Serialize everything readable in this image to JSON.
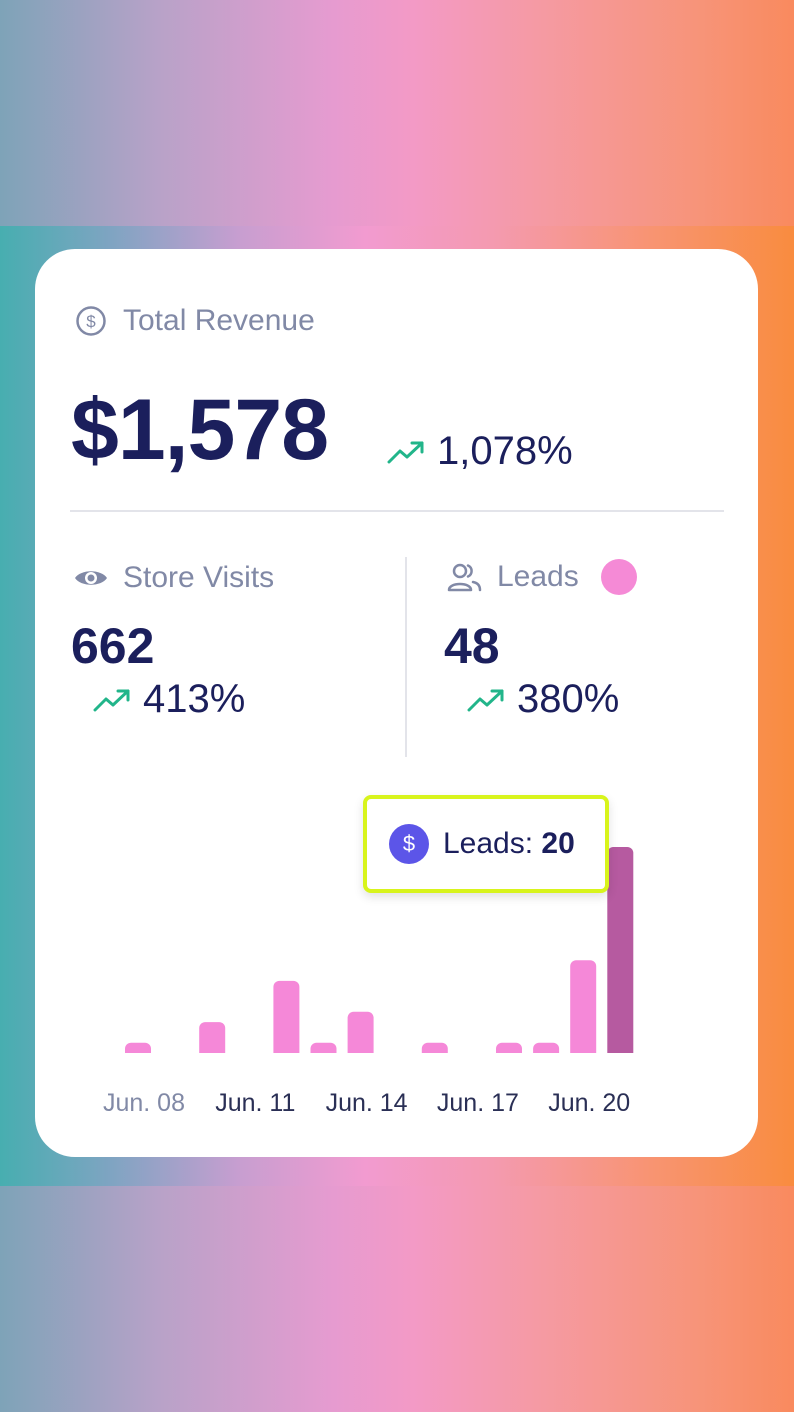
{
  "total_revenue": {
    "label": "Total Revenue",
    "value": "$1,578",
    "change": "1,078%"
  },
  "store_visits": {
    "label": "Store Visits",
    "value": "662",
    "change": "413%"
  },
  "leads": {
    "label": "Leads",
    "value": "48",
    "change": "380%"
  },
  "tooltip": {
    "label": "Leads:",
    "value": "20"
  },
  "colors": {
    "navy": "#1b1f5c",
    "trend_green": "#22b58a",
    "bar": "#f588d8",
    "bar_active": "#b65aa0",
    "tooltip_border": "#d8f41c",
    "tooltip_icon": "#5c55e8"
  },
  "chart_data": {
    "type": "bar",
    "categories": [
      "Jun. 08",
      "Jun. 09",
      "Jun. 10",
      "Jun. 11",
      "Jun. 12",
      "Jun. 13",
      "Jun. 14",
      "Jun. 15",
      "Jun. 16",
      "Jun. 17",
      "Jun. 18",
      "Jun. 19",
      "Jun. 20",
      "Jun. 21"
    ],
    "tick_labels": [
      "Jun. 08",
      "Jun. 11",
      "Jun. 14",
      "Jun. 17",
      "Jun. 20"
    ],
    "values": [
      1,
      0,
      3,
      0,
      7,
      1,
      4,
      0,
      1,
      0,
      1,
      1,
      9,
      20
    ],
    "active_index": 13,
    "ylim": [
      0,
      20
    ]
  }
}
